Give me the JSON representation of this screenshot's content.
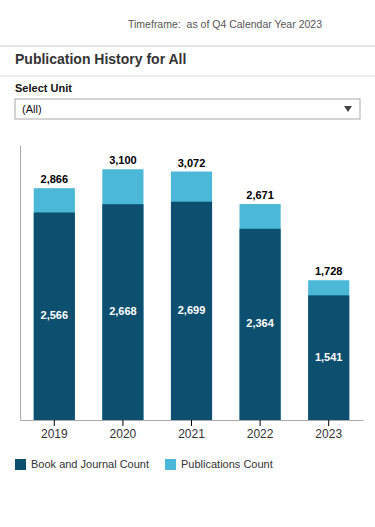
{
  "chart_data": {
    "type": "bar",
    "title": "Publication History for All",
    "annotations": [
      "Timeframe:  as of Q4 Calendar Year 2023",
      "Select Unit",
      "(All)"
    ],
    "categories": [
      "2019",
      "2020",
      "2021",
      "2022",
      "2023"
    ],
    "series": [
      {
        "name": "Publications Count",
        "color": "#4BB8D8",
        "values": [
          2866,
          3100,
          3072,
          2671,
          1728
        ],
        "value_labels": [
          "2,866",
          "3,100",
          "3,072",
          "2,671",
          "1,728"
        ]
      },
      {
        "name": "Book and Journal Count",
        "color": "#0D4F6E",
        "values": [
          2566,
          2668,
          2699,
          2364,
          1541
        ],
        "value_labels": [
          "2,566",
          "2,668",
          "2,699",
          "2,364",
          "1,541"
        ]
      }
    ],
    "stacked": false,
    "ylim": [
      0,
      3400
    ],
    "tick_labels": "x",
    "grid": false,
    "data_labels": true
  }
}
